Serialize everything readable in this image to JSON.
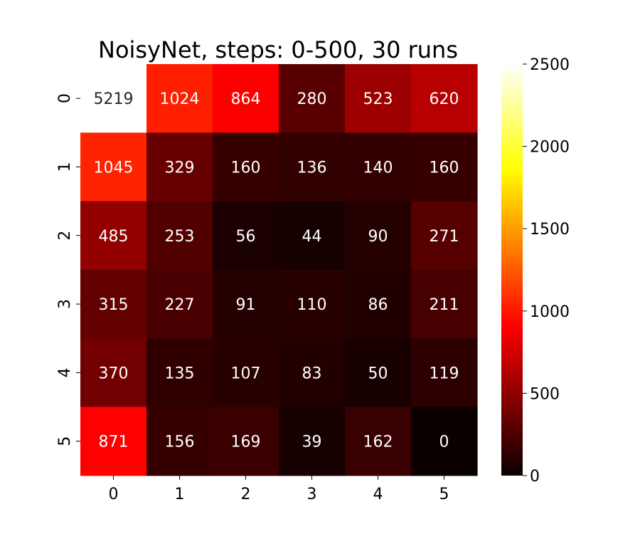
{
  "chart_data": {
    "type": "heatmap",
    "title": "NoisyNet, steps: 0-500, 30 runs",
    "xlabel": "",
    "ylabel": "",
    "x_categories": [
      "0",
      "1",
      "2",
      "3",
      "4",
      "5"
    ],
    "y_categories": [
      "0",
      "1",
      "2",
      "3",
      "4",
      "5"
    ],
    "values": [
      [
        5219,
        1024,
        864,
        280,
        523,
        620
      ],
      [
        1045,
        329,
        160,
        136,
        140,
        160
      ],
      [
        485,
        253,
        56,
        44,
        90,
        271
      ],
      [
        315,
        227,
        91,
        110,
        86,
        211
      ],
      [
        370,
        135,
        107,
        83,
        50,
        119
      ],
      [
        871,
        156,
        169,
        39,
        162,
        0
      ]
    ],
    "colormap": "hot",
    "vmin": 0,
    "vmax": 2500,
    "colorbar_ticks": [
      "0",
      "500",
      "1000",
      "1500",
      "2000",
      "2500"
    ],
    "colorbar_tick_values": [
      0,
      500,
      1000,
      1500,
      2000,
      2500
    ],
    "annotate": true
  }
}
